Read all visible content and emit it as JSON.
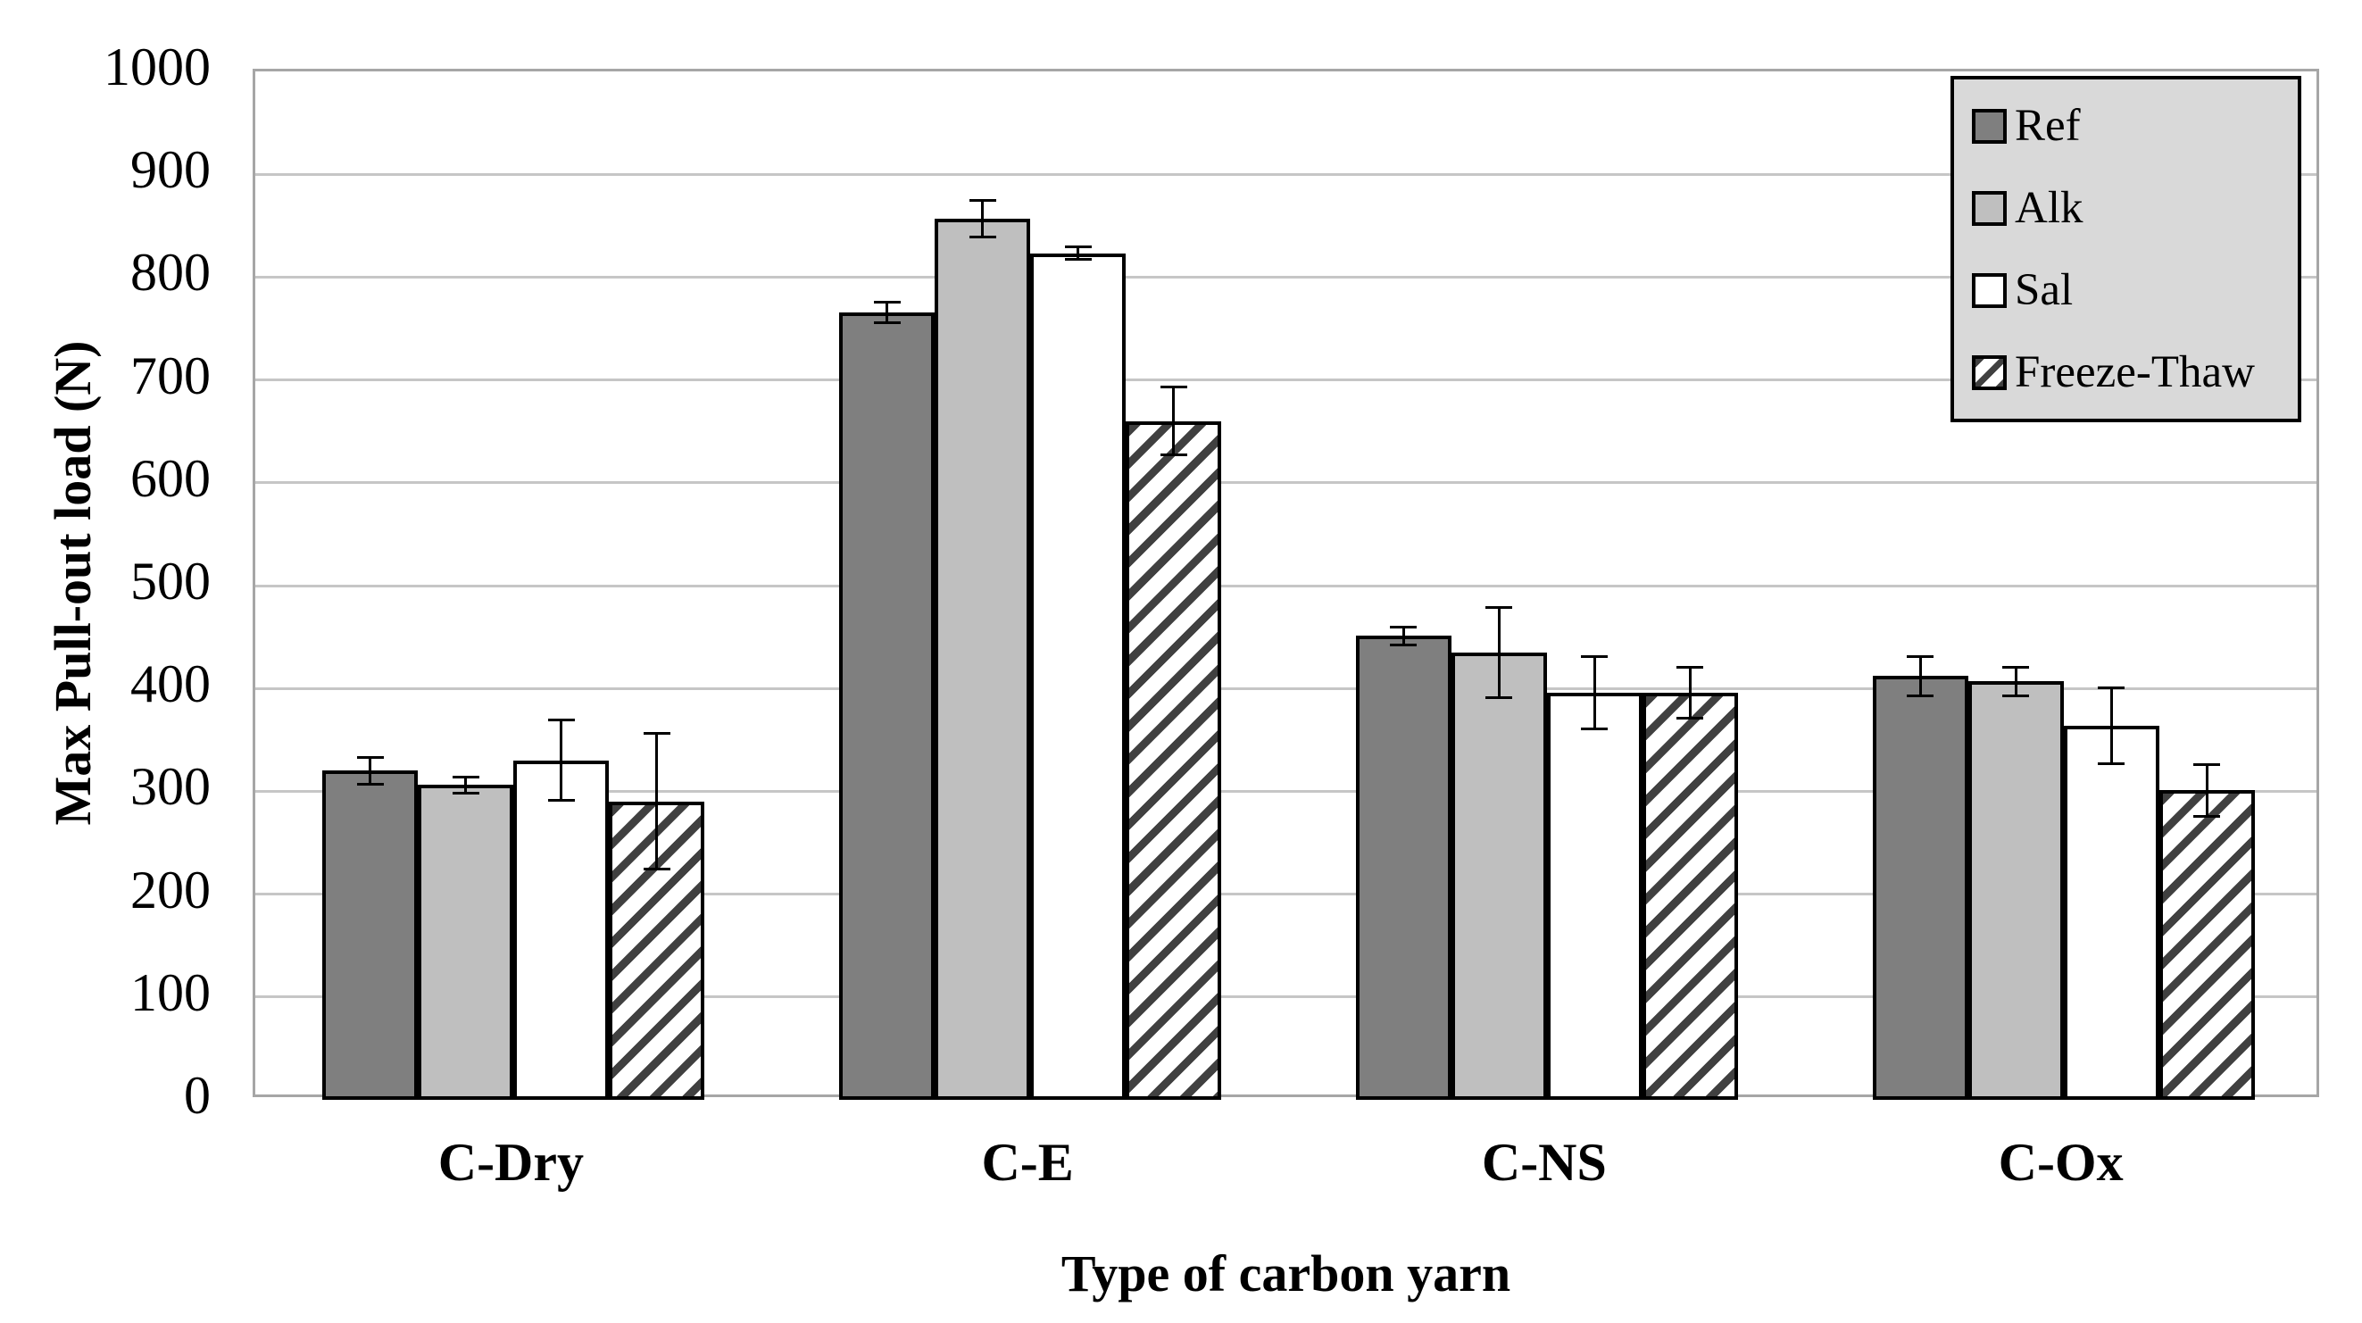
{
  "chart_data": {
    "type": "bar",
    "title": "",
    "xlabel": "Type of carbon yarn",
    "ylabel": "Max Pull-out load (N)",
    "categories": [
      "C-Dry",
      "C-E",
      "C-NS",
      "C-Ox"
    ],
    "series": [
      {
        "name": "Ref",
        "fill": "#7f7f7f",
        "hatch": false,
        "values": [
          320,
          766,
          451,
          412
        ],
        "errors": [
          13,
          10,
          9,
          19
        ]
      },
      {
        "name": "Alk",
        "fill": "#bfbfbf",
        "hatch": false,
        "values": [
          306,
          857,
          435,
          407
        ],
        "errors": [
          8,
          18,
          44,
          14
        ]
      },
      {
        "name": "Sal",
        "fill": "#ffffff",
        "hatch": false,
        "values": [
          330,
          823,
          396,
          364
        ],
        "errors": [
          39,
          6,
          35,
          37
        ]
      },
      {
        "name": "Freeze-Thaw",
        "fill": "#ffffff",
        "hatch": true,
        "values": [
          290,
          660,
          396,
          301
        ],
        "errors": [
          66,
          33,
          25,
          25
        ]
      }
    ],
    "ylim": [
      0,
      1000
    ],
    "yticks": [
      0,
      100,
      200,
      300,
      400,
      500,
      600,
      700,
      800,
      900,
      1000
    ],
    "grid": true,
    "legend_position": "top-right"
  },
  "style": {
    "gridline_color": "#c6c6c6",
    "axis_border_color": "#a6a6a6",
    "bar_border_color": "#000000",
    "hatch_stripe_color": "#404040",
    "legend_background": "#d9d9d9",
    "error_bar_color": "#000000"
  }
}
